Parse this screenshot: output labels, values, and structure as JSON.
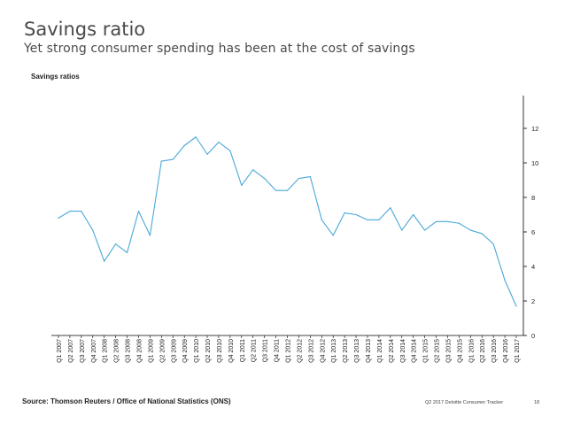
{
  "header": {
    "title": "Savings ratio",
    "subtitle": "Yet strong consumer spending has been at the cost of savings"
  },
  "chart_label": "Savings ratios",
  "footer": {
    "source": "Source: Thomson Reuters / Office of National Statistics (ONS)",
    "tracker": "Q2 2017 Deloitte Consumer Tracker",
    "page_number": "18"
  },
  "colors": {
    "line": "#4aa8d8",
    "axis": "#000000"
  },
  "chart_data": {
    "type": "line",
    "title": "Savings ratios",
    "xlabel": "",
    "ylabel": "",
    "ylim": [
      0,
      14
    ],
    "yticks": [
      0,
      2,
      4,
      6,
      8,
      10,
      12
    ],
    "y_axis_position": "right",
    "grid": false,
    "categories": [
      "Q1 2007",
      "Q2 2007",
      "Q3 2007",
      "Q4 2007",
      "Q1 2008",
      "Q2 2008",
      "Q3 2008",
      "Q4 2008",
      "Q1 2009",
      "Q2 2009",
      "Q3 2009",
      "Q4 2009",
      "Q1 2010",
      "Q2 2010",
      "Q3 2010",
      "Q4 2010",
      "Q1 2011",
      "Q2 2011",
      "Q3 2011",
      "Q4 2011",
      "Q1 2012",
      "Q2 2012",
      "Q3 2012",
      "Q4 2012",
      "Q1 2013",
      "Q2 2013",
      "Q3 2013",
      "Q4 2013",
      "Q1 2014",
      "Q2 2014",
      "Q3 2014",
      "Q4 2014",
      "Q1 2015",
      "Q2 2015",
      "Q3 2015",
      "Q4 2015",
      "Q1 2016",
      "Q2 2016",
      "Q3 2016",
      "Q4 2016",
      "Q1 2017"
    ],
    "series": [
      {
        "name": "Savings ratio",
        "values": [
          6.8,
          7.2,
          7.2,
          6.1,
          4.3,
          5.3,
          4.8,
          7.2,
          5.8,
          10.1,
          10.2,
          11.0,
          11.5,
          10.5,
          11.2,
          10.7,
          8.7,
          9.6,
          9.1,
          8.4,
          8.4,
          9.1,
          9.2,
          6.7,
          5.8,
          7.1,
          7.0,
          6.7,
          6.7,
          7.4,
          6.1,
          7.0,
          6.1,
          6.6,
          6.6,
          6.5,
          6.1,
          5.9,
          5.3,
          3.2,
          1.7
        ]
      }
    ]
  }
}
